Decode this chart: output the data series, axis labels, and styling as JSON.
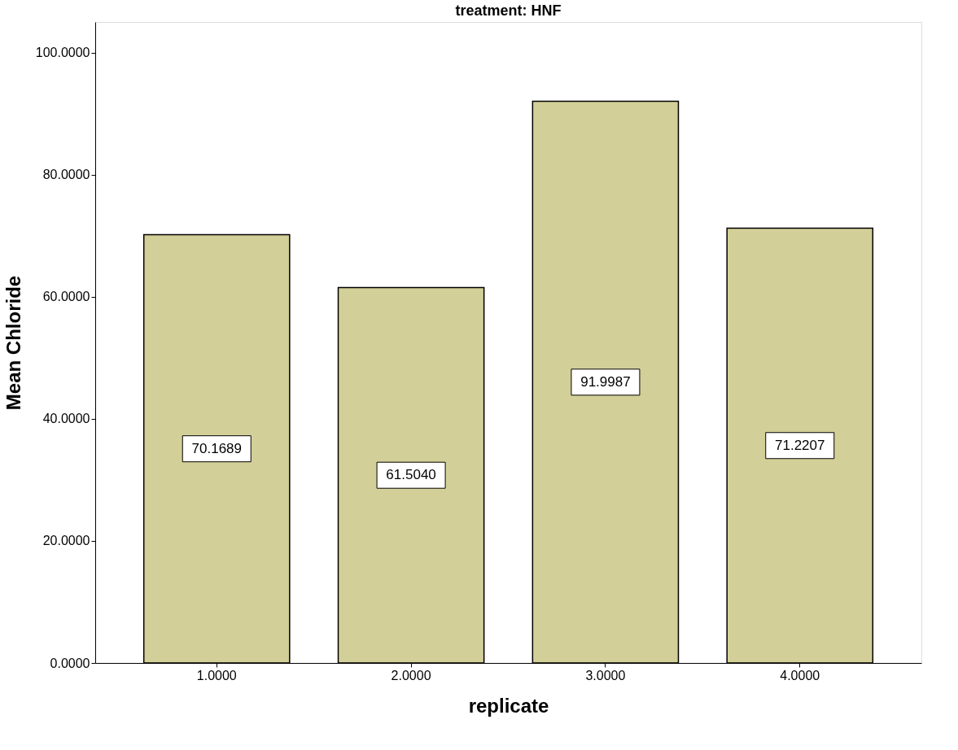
{
  "chart_data": {
    "type": "bar",
    "title": "treatment: HNF",
    "xlabel": "replicate",
    "ylabel": "Mean Chloride",
    "categories": [
      "1.0000",
      "2.0000",
      "3.0000",
      "4.0000"
    ],
    "values": [
      70.1689,
      61.504,
      91.9987,
      71.2207
    ],
    "value_labels": [
      "70.1689",
      "61.5040",
      "91.9987",
      "71.2207"
    ],
    "color": "#d3cf98",
    "ylim": [
      0,
      105
    ],
    "yticks": [
      {
        "value": 0,
        "label": "0.0000"
      },
      {
        "value": 20,
        "label": "20.0000"
      },
      {
        "value": 40,
        "label": "40.0000"
      },
      {
        "value": 60,
        "label": "60.0000"
      },
      {
        "value": 80,
        "label": "80.0000"
      },
      {
        "value": 100,
        "label": "100.0000"
      }
    ],
    "grid": false
  }
}
